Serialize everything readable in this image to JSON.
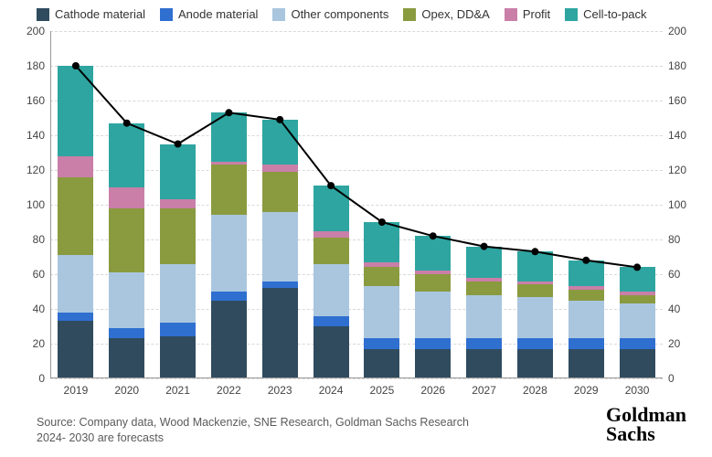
{
  "chart": {
    "type": "stacked-bar-with-line",
    "background_color": "#ffffff",
    "grid_color": "#d9d9d9",
    "axis_color": "#999999",
    "font_family": "Arial",
    "label_fontsize": 12,
    "legend_fontsize": 13,
    "ylim": [
      0,
      200
    ],
    "ytick_step": 20,
    "bar_width_ratio": 0.7,
    "line_color": "#000000",
    "line_width": 2,
    "marker_radius": 4,
    "marker_color": "#000000",
    "series": [
      {
        "key": "cathode",
        "label": "Cathode material",
        "color": "#304b5e"
      },
      {
        "key": "anode",
        "label": "Anode material",
        "color": "#2f6fd0"
      },
      {
        "key": "other",
        "label": "Other components",
        "color": "#aac6df"
      },
      {
        "key": "opex",
        "label": "Opex, DD&A",
        "color": "#8a9a3f"
      },
      {
        "key": "profit",
        "label": "Profit",
        "color": "#c97fa8"
      },
      {
        "key": "cell2pack",
        "label": "Cell-to-pack",
        "color": "#2ea5a0"
      }
    ],
    "categories": [
      "2019",
      "2020",
      "2021",
      "2022",
      "2023",
      "2024",
      "2025",
      "2026",
      "2027",
      "2028",
      "2029",
      "2030"
    ],
    "line_values": [
      180,
      147,
      135,
      153,
      149,
      111,
      90,
      82,
      76,
      73,
      68,
      64
    ],
    "bars": [
      {
        "cathode": 33,
        "anode": 5,
        "other": 33,
        "opex": 45,
        "profit": 12,
        "cell2pack": 52
      },
      {
        "cathode": 23,
        "anode": 6,
        "other": 32,
        "opex": 37,
        "profit": 12,
        "cell2pack": 37
      },
      {
        "cathode": 24,
        "anode": 8,
        "other": 34,
        "opex": 32,
        "profit": 5,
        "cell2pack": 32
      },
      {
        "cathode": 45,
        "anode": 5,
        "other": 44,
        "opex": 29,
        "profit": 2,
        "cell2pack": 28
      },
      {
        "cathode": 52,
        "anode": 4,
        "other": 40,
        "opex": 23,
        "profit": 4,
        "cell2pack": 26
      },
      {
        "cathode": 30,
        "anode": 6,
        "other": 30,
        "opex": 15,
        "profit": 4,
        "cell2pack": 26
      },
      {
        "cathode": 17,
        "anode": 6,
        "other": 30,
        "opex": 11,
        "profit": 3,
        "cell2pack": 23
      },
      {
        "cathode": 17,
        "anode": 6,
        "other": 27,
        "opex": 10,
        "profit": 2,
        "cell2pack": 20
      },
      {
        "cathode": 17,
        "anode": 6,
        "other": 25,
        "opex": 8,
        "profit": 2,
        "cell2pack": 18
      },
      {
        "cathode": 17,
        "anode": 6,
        "other": 24,
        "opex": 7,
        "profit": 2,
        "cell2pack": 17
      },
      {
        "cathode": 17,
        "anode": 6,
        "other": 22,
        "opex": 6,
        "profit": 2,
        "cell2pack": 15
      },
      {
        "cathode": 17,
        "anode": 6,
        "other": 20,
        "opex": 5,
        "profit": 2,
        "cell2pack": 14
      }
    ]
  },
  "source": {
    "line1": "Source: Company data, Wood Mackenzie, SNE Research, Goldman Sachs Research",
    "line2": "2024- 2030 are forecasts"
  },
  "brand": {
    "line1": "Goldman",
    "line2": "Sachs"
  }
}
